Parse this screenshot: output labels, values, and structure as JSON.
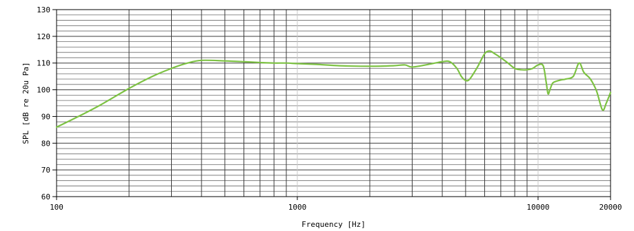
{
  "chart_data": {
    "type": "line",
    "title": "",
    "xlabel": "Frequency [Hz]",
    "ylabel": "SPL [dB re 20u Pa]",
    "x_scale": "log",
    "xlim": [
      100,
      20000
    ],
    "ylim": [
      60,
      130
    ],
    "grid": true,
    "legend": "none",
    "x_ticks": [
      100,
      1000,
      10000,
      20000
    ],
    "x_tick_labels": [
      "100",
      "1000",
      "10000",
      "20000"
    ],
    "y_ticks": [
      60,
      70,
      80,
      90,
      100,
      110,
      120,
      130
    ],
    "y_tick_labels": [
      "60",
      "70",
      "80",
      "90",
      "100",
      "110",
      "120",
      "130"
    ],
    "colors": {
      "line": "#7dc243",
      "major_grid": "#3a3a3a",
      "minor_grid": "#6a6a6a",
      "decade_grid": "#c8c8c8"
    },
    "series": [
      {
        "name": "",
        "x": [
          100,
          120,
          150,
          200,
          250,
          300,
          350,
          400,
          500,
          600,
          700,
          800,
          900,
          1000,
          1200,
          1500,
          2000,
          2500,
          2800,
          3000,
          3500,
          4000,
          4300,
          4600,
          4800,
          5000,
          5200,
          5600,
          6000,
          6300,
          6600,
          7000,
          7500,
          8000,
          8500,
          9000,
          9500,
          10000,
          10500,
          10800,
          11000,
          11200,
          11500,
          12000,
          12500,
          13000,
          14000,
          14800,
          15500,
          16500,
          17500,
          18500,
          19200,
          20000
        ],
        "y": [
          86,
          89.5,
          94,
          100.5,
          105,
          108,
          110,
          111,
          110.8,
          110.5,
          110.2,
          110,
          110,
          109.8,
          109.5,
          109,
          108.8,
          109,
          109.3,
          108.5,
          109.5,
          110.5,
          110.5,
          108,
          105,
          103.5,
          104,
          108.5,
          113.5,
          114.5,
          113.5,
          112,
          110,
          108,
          107.5,
          107.5,
          108,
          109.3,
          109,
          103,
          98.5,
          100,
          102.5,
          103.3,
          103.7,
          104,
          105,
          110,
          106.5,
          104,
          99.5,
          92.5,
          95,
          99
        ]
      }
    ]
  }
}
